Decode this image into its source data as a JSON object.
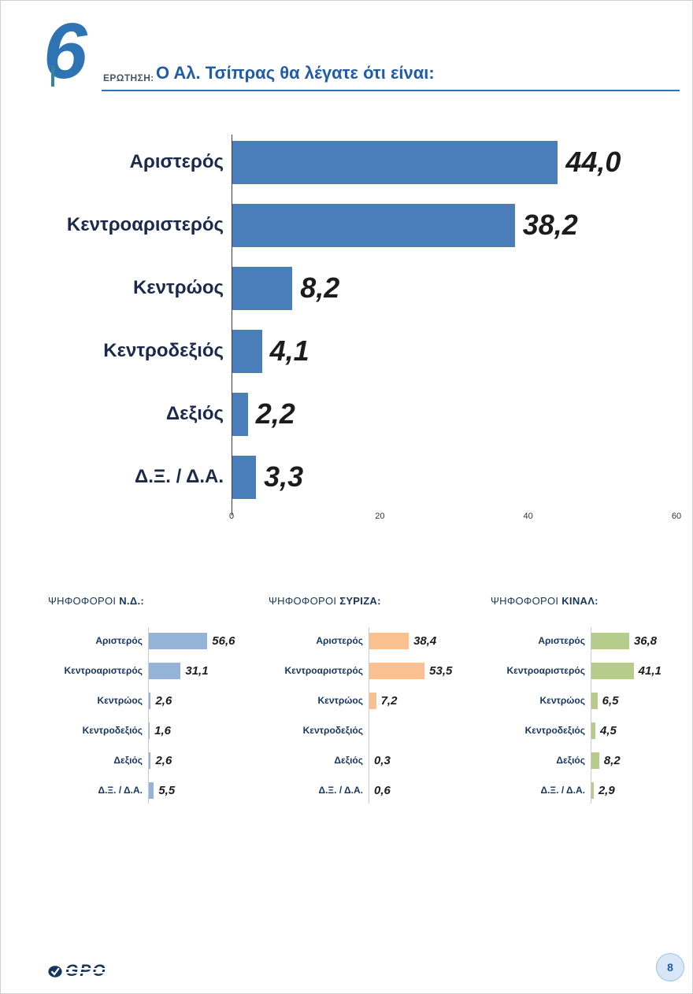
{
  "page": {
    "question_number": "6",
    "question_label": "ΕΡΩΤΗΣΗ:",
    "title": "Ο Αλ. Τσίπρας θα λέγατε ότι είναι:",
    "page_number": "8",
    "logo_text": "GPO"
  },
  "colors": {
    "main_bar": "#4A7EBA",
    "nd_bar": "#95B3D7",
    "syriza_bar": "#FAC090",
    "kinal_bar": "#B6CC8A",
    "accent_blue": "#2E74B5",
    "accent_teal": "#31859C"
  },
  "chart_data": [
    {
      "type": "bar",
      "orientation": "horizontal",
      "title": "Ο Αλ. Τσίπρας θα λέγατε ότι είναι:",
      "categories": [
        "Αριστερός",
        "Κεντροαριστερός",
        "Κεντρώος",
        "Κεντροδεξιός",
        "Δεξιός",
        "Δ.Ξ. / Δ.Α."
      ],
      "values": [
        44.0,
        38.2,
        8.2,
        4.1,
        2.2,
        3.3
      ],
      "labels": [
        "44,0",
        "38,2",
        "8,2",
        "4,1",
        "2,2",
        "3,3"
      ],
      "xlim": [
        0,
        60
      ],
      "xticks": [
        0,
        20,
        40,
        60
      ],
      "bar_color": "#4A7EBA",
      "grid": false,
      "legend": false
    },
    {
      "type": "bar",
      "orientation": "horizontal",
      "group_label": "ΨΗΦΟΦΟΡΟΙ",
      "group_name": "Ν.Δ.:",
      "categories": [
        "Αριστερός",
        "Κεντροαριστερός",
        "Κεντρώος",
        "Κεντροδεξιός",
        "Δεξιός",
        "Δ.Ξ. / Δ.Α."
      ],
      "values": [
        56.6,
        31.1,
        2.6,
        1.6,
        2.6,
        5.5
      ],
      "labels": [
        "56,6",
        "31,1",
        "2,6",
        "1,6",
        "2,6",
        "5,5"
      ],
      "bar_color": "#95B3D7"
    },
    {
      "type": "bar",
      "orientation": "horizontal",
      "group_label": "ΨΗΦΟΦΟΡΟΙ",
      "group_name": "ΣΥΡΙΖΑ:",
      "categories": [
        "Αριστερός",
        "Κεντροαριστερός",
        "Κεντρώος",
        "Κεντροδεξιός",
        "Δεξιός",
        "Δ.Ξ. / Δ.Α."
      ],
      "values": [
        38.4,
        53.5,
        7.2,
        null,
        0.3,
        0.6
      ],
      "labels": [
        "38,4",
        "53,5",
        "7,2",
        "",
        "0,3",
        "0,6"
      ],
      "bar_color": "#FAC090"
    },
    {
      "type": "bar",
      "orientation": "horizontal",
      "group_label": "ΨΗΦΟΦΟΡΟΙ",
      "group_name": "ΚΙΝΑΛ:",
      "categories": [
        "Αριστερός",
        "Κεντροαριστερός",
        "Κεντρώος",
        "Κεντροδεξιός",
        "Δεξιός",
        "Δ.Ξ. / Δ.Α."
      ],
      "values": [
        36.8,
        41.1,
        6.5,
        4.5,
        8.2,
        2.9
      ],
      "labels": [
        "36,8",
        "41,1",
        "6,5",
        "4,5",
        "8,2",
        "2,9"
      ],
      "bar_color": "#B6CC8A"
    }
  ]
}
